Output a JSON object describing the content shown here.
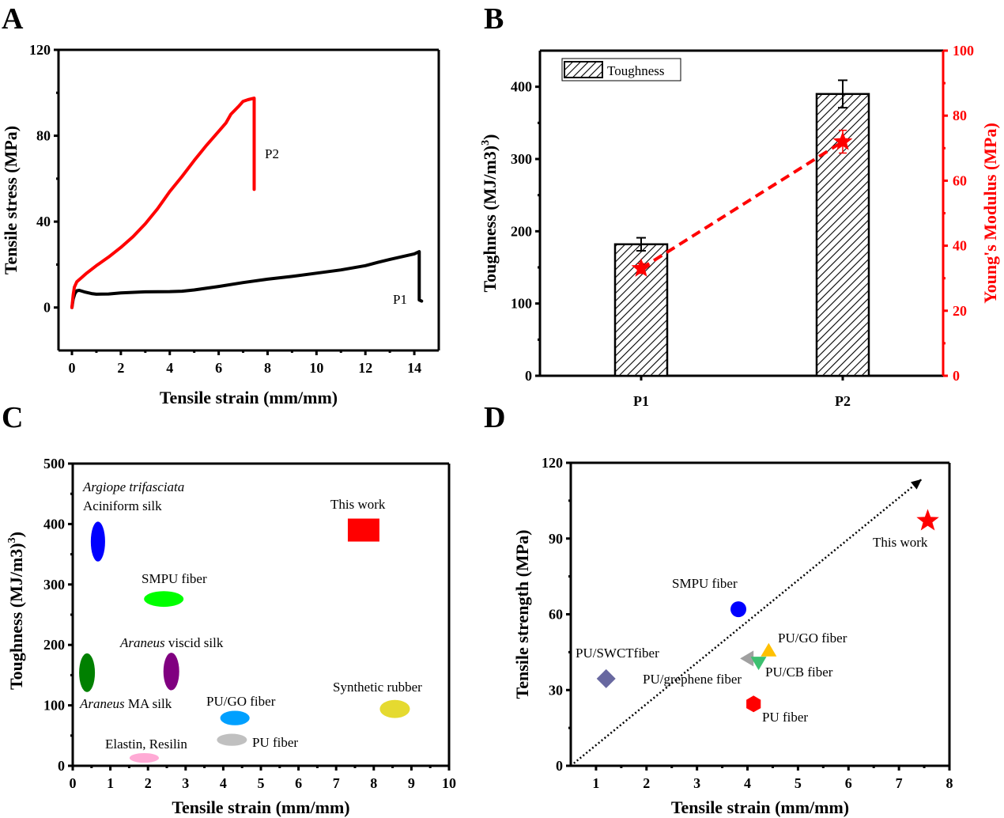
{
  "panels": {
    "A": {
      "letter": "A"
    },
    "B": {
      "letter": "B"
    },
    "C": {
      "letter": "C"
    },
    "D": {
      "letter": "D"
    }
  },
  "chart_data": [
    {
      "id": "A",
      "type": "line",
      "title": "",
      "xlabel": "Tensile strain (mm/mm)",
      "ylabel": "Tensile stress (MPa)",
      "xlim": [
        -0.55,
        15.0
      ],
      "ylim": [
        -20,
        120
      ],
      "xticks": [
        0,
        2,
        4,
        6,
        8,
        10,
        12,
        14
      ],
      "yticks": [
        0,
        40,
        80,
        120
      ],
      "grid": false,
      "series": [
        {
          "name": "P1",
          "color": "#000000",
          "label": "P1",
          "x": [
            0,
            0.05,
            0.12,
            0.2,
            0.3,
            0.5,
            0.8,
            1.0,
            1.5,
            2.0,
            3.0,
            4.0,
            4.5,
            5.0,
            6.0,
            7.0,
            8.0,
            9.0,
            10.0,
            11.0,
            12.0,
            12.5,
            13.0,
            13.5,
            14.0,
            14.2,
            14.2,
            14.3
          ],
          "y": [
            0,
            4,
            6.5,
            7.8,
            8.0,
            7.3,
            6.5,
            6.2,
            6.3,
            6.8,
            7.3,
            7.4,
            7.6,
            8.2,
            9.8,
            11.6,
            13.2,
            14.5,
            16.0,
            17.5,
            19.5,
            21.0,
            22.4,
            23.7,
            25.0,
            26.0,
            3.5,
            3.0
          ]
        },
        {
          "name": "P2",
          "color": "#ff0000",
          "label": "P2",
          "x": [
            0,
            0.05,
            0.1,
            0.2,
            0.4,
            0.6,
            1.0,
            1.5,
            2.0,
            2.5,
            3.0,
            3.5,
            4.0,
            4.5,
            5.0,
            5.5,
            6.0,
            6.3,
            6.5,
            6.8,
            7.0,
            7.2,
            7.45,
            7.45
          ],
          "y": [
            0,
            6,
            9.5,
            12,
            14,
            16,
            19.5,
            23.5,
            28,
            33,
            39,
            46,
            54,
            61,
            68.5,
            75.5,
            82,
            86,
            90,
            93.5,
            96,
            96.8,
            97.5,
            55
          ]
        }
      ]
    },
    {
      "id": "B",
      "type": "bar",
      "title": "",
      "categories": [
        "P1",
        "P2"
      ],
      "xlabel": "",
      "ylabel": "Toughness (MJ/m3)",
      "ylabel_superscript": "3",
      "ylim": [
        0,
        450
      ],
      "yticks": [
        0,
        100,
        200,
        300,
        400
      ],
      "y2label": "Young's Modulus (MPa)",
      "y2lim": [
        0,
        100
      ],
      "y2ticks": [
        0,
        20,
        40,
        60,
        80,
        100
      ],
      "y2color": "#ff0000",
      "legend": {
        "label": "Toughness",
        "position": "top-left"
      },
      "series": [
        {
          "name": "Toughness",
          "axis": "left",
          "values": [
            182,
            390
          ],
          "errors": [
            9,
            19
          ],
          "pattern": "hatched"
        },
        {
          "name": "Young's Modulus",
          "axis": "right",
          "values": [
            33,
            72
          ],
          "errors": [
            1.5,
            3.5
          ],
          "color": "#ff0000",
          "marker": "star",
          "line": "dashed"
        }
      ]
    },
    {
      "id": "C",
      "type": "scatter",
      "title": "",
      "xlabel": "Tensile strain (mm/mm)",
      "ylabel": "Toughness (MJ/m3)",
      "ylabel_superscript": "3",
      "xlim": [
        0,
        10
      ],
      "ylim": [
        0,
        500
      ],
      "xticks": [
        0,
        1,
        2,
        3,
        4,
        5,
        6,
        7,
        8,
        9,
        10
      ],
      "yticks": [
        0,
        100,
        200,
        300,
        400,
        500
      ],
      "grid": false,
      "points": [
        {
          "name": "Argiope trifasciata Aciniform silk",
          "label_italic": "Argiope trifasciata",
          "label": "Aciniform silk",
          "x": 0.67,
          "y": 371,
          "xspan": 0.38,
          "yspan": 66,
          "shape": "ellipse",
          "color": "#0000ff"
        },
        {
          "name": "SMPU fiber",
          "label": "SMPU fiber",
          "x": 2.42,
          "y": 276,
          "xspan": 1.05,
          "yspan": 26,
          "shape": "ellipse",
          "color": "#00ff00"
        },
        {
          "name": "Araneus viscid silk",
          "label_italic": "Araneus",
          "label": " viscid silk",
          "x": 2.62,
          "y": 156,
          "xspan": 0.42,
          "yspan": 62,
          "shape": "ellipse",
          "color": "#800080"
        },
        {
          "name": "Araneus MA silk",
          "label_italic": "Araneus",
          "label": " MA silk",
          "x": 0.38,
          "y": 154,
          "xspan": 0.42,
          "yspan": 64,
          "shape": "ellipse",
          "color": "#008000"
        },
        {
          "name": "PU/GO fiber",
          "label": "PU/GO fiber",
          "x": 4.31,
          "y": 79,
          "xspan": 0.78,
          "yspan": 24,
          "shape": "ellipse",
          "color": "#00a0ff"
        },
        {
          "name": "PU fiber",
          "label": "PU fiber",
          "x": 4.23,
          "y": 43,
          "xspan": 0.8,
          "yspan": 20,
          "shape": "ellipse",
          "color": "#c0c0c0"
        },
        {
          "name": "Elastin, Resilin",
          "label": "Elastin, Resilin",
          "x": 1.9,
          "y": 13,
          "xspan": 0.78,
          "yspan": 16,
          "shape": "ellipse",
          "color": "#ffaad5"
        },
        {
          "name": "Synthetic rubber",
          "label": "Synthetic rubber",
          "x": 8.56,
          "y": 94,
          "xspan": 0.8,
          "yspan": 30,
          "shape": "ellipse",
          "color": "#e5da30"
        },
        {
          "name": "This work",
          "label": "This work",
          "x": 7.73,
          "y": 390,
          "xspan": 0.84,
          "yspan": 38,
          "shape": "square",
          "color": "#ff0000"
        }
      ]
    },
    {
      "id": "D",
      "type": "scatter",
      "title": "",
      "xlabel": "Tensile strain (mm/mm)",
      "ylabel": "Tensile strength (MPa)",
      "xlim": [
        0.5,
        8
      ],
      "ylim": [
        0,
        120
      ],
      "xticks": [
        1,
        2,
        3,
        4,
        5,
        6,
        7,
        8
      ],
      "yticks": [
        0,
        30,
        60,
        90,
        120
      ],
      "grid": false,
      "trend_arrow": {
        "from": [
          0.5,
          0
        ],
        "to": [
          7.45,
          113.5
        ],
        "style": "dotted"
      },
      "points": [
        {
          "name": "This work",
          "label": "This work",
          "x": 7.57,
          "y": 97,
          "marker": "star",
          "color": "#ff0000"
        },
        {
          "name": "SMPU fiber",
          "label": "SMPU fiber",
          "x": 3.82,
          "y": 62,
          "marker": "circle",
          "color": "#0000ff"
        },
        {
          "name": "PU/GO fiber",
          "label": "PU/GO fiber",
          "x": 4.42,
          "y": 45.5,
          "marker": "triangle-up",
          "color": "#ffc000"
        },
        {
          "name": "PU/grephene fiber",
          "label": "PU/grephene fiber",
          "x": 4.01,
          "y": 42.5,
          "marker": "triangle-left",
          "color": "#a0a0a0"
        },
        {
          "name": "PU/CB fiber",
          "label": "PU/CB fiber",
          "x": 4.22,
          "y": 41,
          "marker": "triangle-down",
          "color": "#3cc070"
        },
        {
          "name": "PU/SWCTfiber",
          "label": "PU/SWCTfiber",
          "x": 1.2,
          "y": 34.5,
          "marker": "diamond",
          "color": "#6868a0"
        },
        {
          "name": "PU fiber",
          "label": "PU fiber",
          "x": 4.12,
          "y": 24.5,
          "marker": "hexagon",
          "color": "#ff0000"
        }
      ]
    }
  ]
}
